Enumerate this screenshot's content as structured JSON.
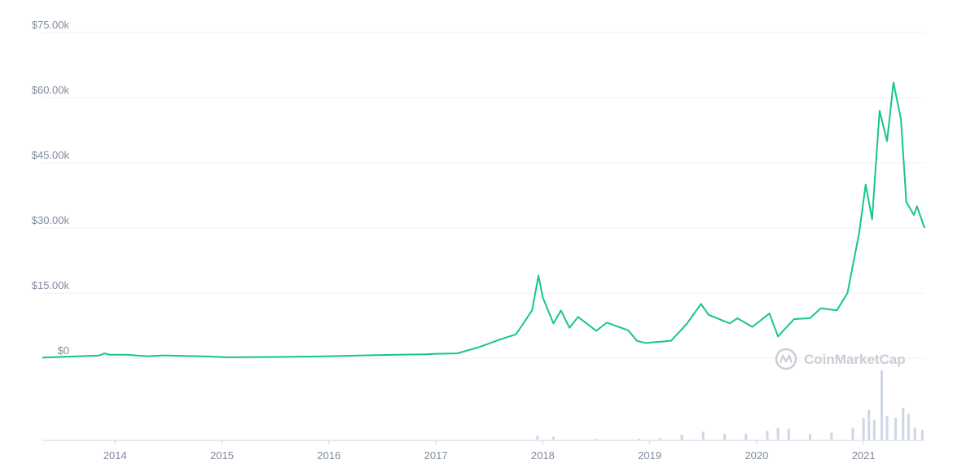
{
  "chart_data": {
    "type": "line",
    "color": "#16c784",
    "grid": true,
    "watermark": "CoinMarketCap",
    "xlim": [
      2013.32,
      2021.57
    ],
    "xticks": [
      2014,
      2015,
      2016,
      2017,
      2018,
      2019,
      2020,
      2021
    ],
    "ylim": [
      0,
      75000
    ],
    "yticks": [
      {
        "value": 0,
        "label": "$0"
      },
      {
        "value": 15000,
        "label": "$15.00k"
      },
      {
        "value": 30000,
        "label": "$30.00k"
      },
      {
        "value": 45000,
        "label": "$45.00k"
      },
      {
        "value": 60000,
        "label": "$60.00k"
      },
      {
        "value": 75000,
        "label": "$75.00k"
      }
    ],
    "x": [
      2013.32,
      2013.85,
      2013.9,
      2013.95,
      2014.1,
      2014.3,
      2014.45,
      2014.9,
      2015.05,
      2015.5,
      2015.9,
      2016.45,
      2016.9,
      2017.0,
      2017.2,
      2017.4,
      2017.6,
      2017.75,
      2017.9,
      2017.96,
      2018.0,
      2018.1,
      2018.17,
      2018.25,
      2018.33,
      2018.5,
      2018.6,
      2018.8,
      2018.88,
      2018.96,
      2019.2,
      2019.35,
      2019.48,
      2019.55,
      2019.75,
      2019.82,
      2019.96,
      2020.12,
      2020.2,
      2020.35,
      2020.5,
      2020.6,
      2020.75,
      2020.85,
      2020.96,
      2021.02,
      2021.08,
      2021.15,
      2021.22,
      2021.28,
      2021.35,
      2021.4,
      2021.47,
      2021.5,
      2021.57
    ],
    "values": [
      130,
      600,
      1100,
      800,
      800,
      450,
      640,
      370,
      220,
      270,
      400,
      700,
      900,
      1000,
      1100,
      2500,
      4300,
      5500,
      11000,
      19000,
      14000,
      8000,
      11000,
      7000,
      9500,
      6300,
      8200,
      6400,
      4000,
      3500,
      4000,
      8000,
      12500,
      10000,
      8000,
      9200,
      7200,
      10300,
      5000,
      9000,
      9200,
      11500,
      11000,
      15000,
      29000,
      40000,
      32000,
      57000,
      50000,
      63500,
      55000,
      36000,
      33000,
      35000,
      30000
    ],
    "volume": {
      "color": "#cfd6e4",
      "x": [
        2017.95,
        2018.1,
        2018.5,
        2018.9,
        2019.1,
        2019.3,
        2019.5,
        2019.7,
        2019.9,
        2020.1,
        2020.2,
        2020.3,
        2020.5,
        2020.7,
        2020.9,
        2021.0,
        2021.05,
        2021.1,
        2021.17,
        2021.22,
        2021.3,
        2021.37,
        2021.42,
        2021.48,
        2021.55
      ],
      "values": [
        20000000000.0,
        15000000000.0,
        5000000000.0,
        5000000000.0,
        8000000000.0,
        25000000000.0,
        40000000000.0,
        30000000000.0,
        30000000000.0,
        45000000000.0,
        60000000000.0,
        55000000000.0,
        30000000000.0,
        35000000000.0,
        60000000000.0,
        110000000000.0,
        150000000000.0,
        100000000000.0,
        350000000000.0,
        120000000000.0,
        110000000000.0,
        160000000000.0,
        130000000000.0,
        60000000000.0,
        50000000000.0
      ]
    }
  }
}
